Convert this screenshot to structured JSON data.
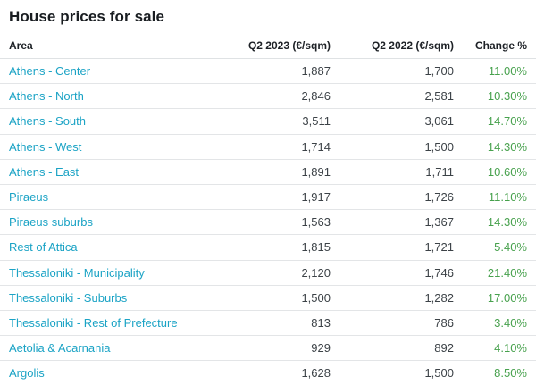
{
  "title": "House prices for sale",
  "table": {
    "headers": {
      "area": "Area",
      "q2_2023": "Q2 2023 (€/sqm)",
      "q2_2022": "Q2 2022 (€/sqm)",
      "change": "Change %"
    },
    "rows": [
      {
        "area": "Athens - Center",
        "q2_2023": "1,887",
        "q2_2022": "1,700",
        "change": "11.00%"
      },
      {
        "area": "Athens - North",
        "q2_2023": "2,846",
        "q2_2022": "2,581",
        "change": "10.30%"
      },
      {
        "area": "Athens - South",
        "q2_2023": "3,511",
        "q2_2022": "3,061",
        "change": "14.70%"
      },
      {
        "area": "Athens - West",
        "q2_2023": "1,714",
        "q2_2022": "1,500",
        "change": "14.30%"
      },
      {
        "area": "Athens - East",
        "q2_2023": "1,891",
        "q2_2022": "1,711",
        "change": "10.60%"
      },
      {
        "area": "Piraeus",
        "q2_2023": "1,917",
        "q2_2022": "1,726",
        "change": "11.10%"
      },
      {
        "area": "Piraeus suburbs",
        "q2_2023": "1,563",
        "q2_2022": "1,367",
        "change": "14.30%"
      },
      {
        "area": "Rest of Attica",
        "q2_2023": "1,815",
        "q2_2022": "1,721",
        "change": "5.40%"
      },
      {
        "area": "Thessaloniki - Municipality",
        "q2_2023": "2,120",
        "q2_2022": "1,746",
        "change": "21.40%"
      },
      {
        "area": "Thessaloniki - Suburbs",
        "q2_2023": "1,500",
        "q2_2022": "1,282",
        "change": "17.00%"
      },
      {
        "area": "Thessaloniki - Rest of Prefecture",
        "q2_2023": "813",
        "q2_2022": "786",
        "change": "3.40%"
      },
      {
        "area": "Aetolia & Acarnania",
        "q2_2023": "929",
        "q2_2022": "892",
        "change": "4.10%"
      },
      {
        "area": "Argolis",
        "q2_2023": "1,628",
        "q2_2022": "1,500",
        "change": "8.50%"
      }
    ]
  },
  "colors": {
    "area_link": "#1ba3c5",
    "change_positive": "#47a14d",
    "heading_text": "#191d21",
    "number_text": "#3c4247",
    "divider": "#e3e5e7"
  },
  "chart_data": {
    "type": "table",
    "title": "House prices for sale",
    "columns": [
      "Area",
      "Q2 2023 (€/sqm)",
      "Q2 2022 (€/sqm)",
      "Change %"
    ],
    "categories": [
      "Athens - Center",
      "Athens - North",
      "Athens - South",
      "Athens - West",
      "Athens - East",
      "Piraeus",
      "Piraeus suburbs",
      "Rest of Attica",
      "Thessaloniki - Municipality",
      "Thessaloniki - Suburbs",
      "Thessaloniki - Rest of Prefecture",
      "Aetolia & Acarnania",
      "Argolis"
    ],
    "series": [
      {
        "name": "Q2 2023 (€/sqm)",
        "values": [
          1887,
          2846,
          3511,
          1714,
          1891,
          1917,
          1563,
          1815,
          2120,
          1500,
          813,
          929,
          1628
        ]
      },
      {
        "name": "Q2 2022 (€/sqm)",
        "values": [
          1700,
          2581,
          3061,
          1500,
          1711,
          1726,
          1367,
          1721,
          1746,
          1282,
          786,
          892,
          1500
        ]
      },
      {
        "name": "Change %",
        "values": [
          11.0,
          10.3,
          14.7,
          14.3,
          10.6,
          11.1,
          14.3,
          5.4,
          21.4,
          17.0,
          3.4,
          4.1,
          8.5
        ]
      }
    ]
  }
}
